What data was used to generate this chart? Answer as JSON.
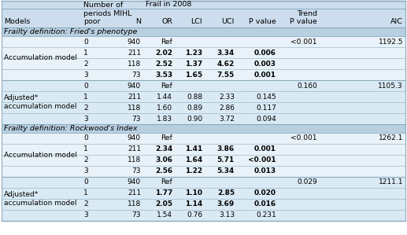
{
  "col_headers": [
    "Models",
    "Number of\nperiods MIHL\npoor",
    "N",
    "OR",
    "LCI",
    "UCI",
    "P value",
    "Trend\nP value",
    "AIC"
  ],
  "frail_header": "Frail in 2008",
  "section1": "Frailty definition: Fried's phenotype",
  "section2": "Frailty definition: Rockwood's Index",
  "rows": [
    {
      "model": "Accumulation model",
      "period": "0",
      "N": "940",
      "OR": "Ref",
      "LCI": "",
      "UCI": "",
      "Pvalue": "",
      "TrendP": "<0.001",
      "AIC": "1192.5",
      "bold": false,
      "section": 1,
      "sub": 1
    },
    {
      "model": "",
      "period": "1",
      "N": "211",
      "OR": "2.02",
      "LCI": "1.23",
      "UCI": "3.34",
      "Pvalue": "0.006",
      "TrendP": "",
      "AIC": "",
      "bold": true,
      "section": 1,
      "sub": 1
    },
    {
      "model": "",
      "period": "2",
      "N": "118",
      "OR": "2.52",
      "LCI": "1.37",
      "UCI": "4.62",
      "Pvalue": "0.003",
      "TrendP": "",
      "AIC": "",
      "bold": true,
      "section": 1,
      "sub": 1
    },
    {
      "model": "",
      "period": "3",
      "N": "73",
      "OR": "3.53",
      "LCI": "1.65",
      "UCI": "7.55",
      "Pvalue": "0.001",
      "TrendP": "",
      "AIC": "",
      "bold": true,
      "section": 1,
      "sub": 1
    },
    {
      "model": "Adjusted*\naccumulation model",
      "period": "0",
      "N": "940",
      "OR": "Ref",
      "LCI": "",
      "UCI": "",
      "Pvalue": "",
      "TrendP": "0.160",
      "AIC": "1105.3",
      "bold": false,
      "section": 1,
      "sub": 2
    },
    {
      "model": "",
      "period": "1",
      "N": "211",
      "OR": "1.44",
      "LCI": "0.88",
      "UCI": "2.33",
      "Pvalue": "0.145",
      "TrendP": "",
      "AIC": "",
      "bold": false,
      "section": 1,
      "sub": 2
    },
    {
      "model": "",
      "period": "2",
      "N": "118",
      "OR": "1.60",
      "LCI": "0.89",
      "UCI": "2.86",
      "Pvalue": "0.117",
      "TrendP": "",
      "AIC": "",
      "bold": false,
      "section": 1,
      "sub": 2
    },
    {
      "model": "",
      "period": "3",
      "N": "73",
      "OR": "1.83",
      "LCI": "0.90",
      "UCI": "3.72",
      "Pvalue": "0.094",
      "TrendP": "",
      "AIC": "",
      "bold": false,
      "section": 1,
      "sub": 2
    },
    {
      "model": "Accumulation model",
      "period": "0",
      "N": "940",
      "OR": "Ref",
      "LCI": "",
      "UCI": "",
      "Pvalue": "",
      "TrendP": "<0.001",
      "AIC": "1262.1",
      "bold": false,
      "section": 2,
      "sub": 1
    },
    {
      "model": "",
      "period": "1",
      "N": "211",
      "OR": "2.34",
      "LCI": "1.41",
      "UCI": "3.86",
      "Pvalue": "0.001",
      "TrendP": "",
      "AIC": "",
      "bold": true,
      "section": 2,
      "sub": 1
    },
    {
      "model": "",
      "period": "2",
      "N": "118",
      "OR": "3.06",
      "LCI": "1.64",
      "UCI": "5.71",
      "Pvalue": "<0.001",
      "TrendP": "",
      "AIC": "",
      "bold": true,
      "section": 2,
      "sub": 1
    },
    {
      "model": "",
      "period": "3",
      "N": "73",
      "OR": "2.56",
      "LCI": "1.22",
      "UCI": "5.34",
      "Pvalue": "0.013",
      "TrendP": "",
      "AIC": "",
      "bold": true,
      "section": 2,
      "sub": 1
    },
    {
      "model": "Adjusted*\naccumulation model",
      "period": "0",
      "N": "940",
      "OR": "Ref",
      "LCI": "",
      "UCI": "",
      "Pvalue": "",
      "TrendP": "0.029",
      "AIC": "1211.1",
      "bold": false,
      "section": 2,
      "sub": 2
    },
    {
      "model": "",
      "period": "1",
      "N": "211",
      "OR": "1.77",
      "LCI": "1.10",
      "UCI": "2.85",
      "Pvalue": "0.020",
      "TrendP": "",
      "AIC": "",
      "bold": true,
      "section": 2,
      "sub": 2
    },
    {
      "model": "",
      "period": "2",
      "N": "118",
      "OR": "2.05",
      "LCI": "1.14",
      "UCI": "3.69",
      "Pvalue": "0.016",
      "TrendP": "",
      "AIC": "",
      "bold": true,
      "section": 2,
      "sub": 2
    },
    {
      "model": "",
      "period": "3",
      "N": "73",
      "OR": "1.54",
      "LCI": "0.76",
      "UCI": "3.13",
      "Pvalue": "0.231",
      "TrendP": "",
      "AIC": "",
      "bold": false,
      "section": 2,
      "sub": 2
    }
  ],
  "bg_header": "#ccdded",
  "bg_section": "#b8cfe0",
  "bg_sub1": "#e8f2f8",
  "bg_sub2": "#daeaf4",
  "line_color": "#8aabbf",
  "text_color": "#000000",
  "header_fontsize": 6.8,
  "cell_fontsize": 6.5,
  "section_fontsize": 6.8
}
